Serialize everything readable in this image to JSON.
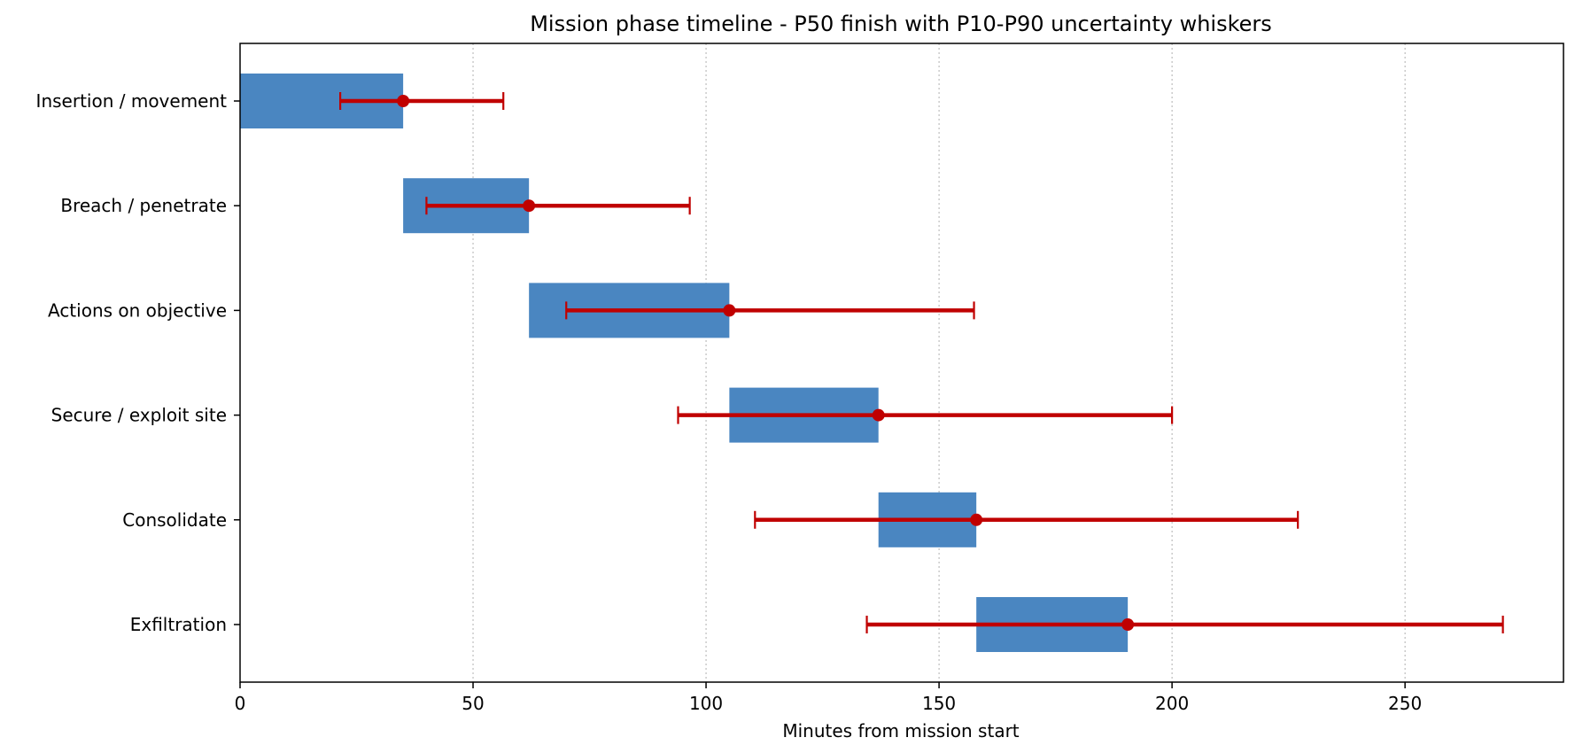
{
  "chart_data": {
    "type": "bar",
    "orientation": "horizontal",
    "title": "Mission phase timeline - P50 finish with P10-P90 uncertainty whiskers",
    "xlabel": "Minutes from mission start",
    "ylabel": "",
    "xlim": [
      0,
      284
    ],
    "xticks": [
      0,
      50,
      100,
      150,
      200,
      250
    ],
    "grid": "x-dotted",
    "bar_color": "#4a86c1",
    "whisker_color": "#c00000",
    "categories": [
      "Insertion / movement",
      "Breach / penetrate",
      "Actions on objective",
      "Secure / exploit site",
      "Consolidate",
      "Exfiltration"
    ],
    "bars": [
      {
        "start": 0,
        "end": 35
      },
      {
        "start": 35,
        "end": 62
      },
      {
        "start": 62,
        "end": 105
      },
      {
        "start": 105,
        "end": 137
      },
      {
        "start": 137,
        "end": 158
      },
      {
        "start": 158,
        "end": 190.5
      }
    ],
    "p50_finish": [
      35,
      62,
      105,
      137,
      158,
      190.5
    ],
    "p10": [
      21.5,
      40,
      70,
      94,
      110.5,
      134.5
    ],
    "p90": [
      56.5,
      96.5,
      157.5,
      200,
      227,
      271
    ]
  }
}
